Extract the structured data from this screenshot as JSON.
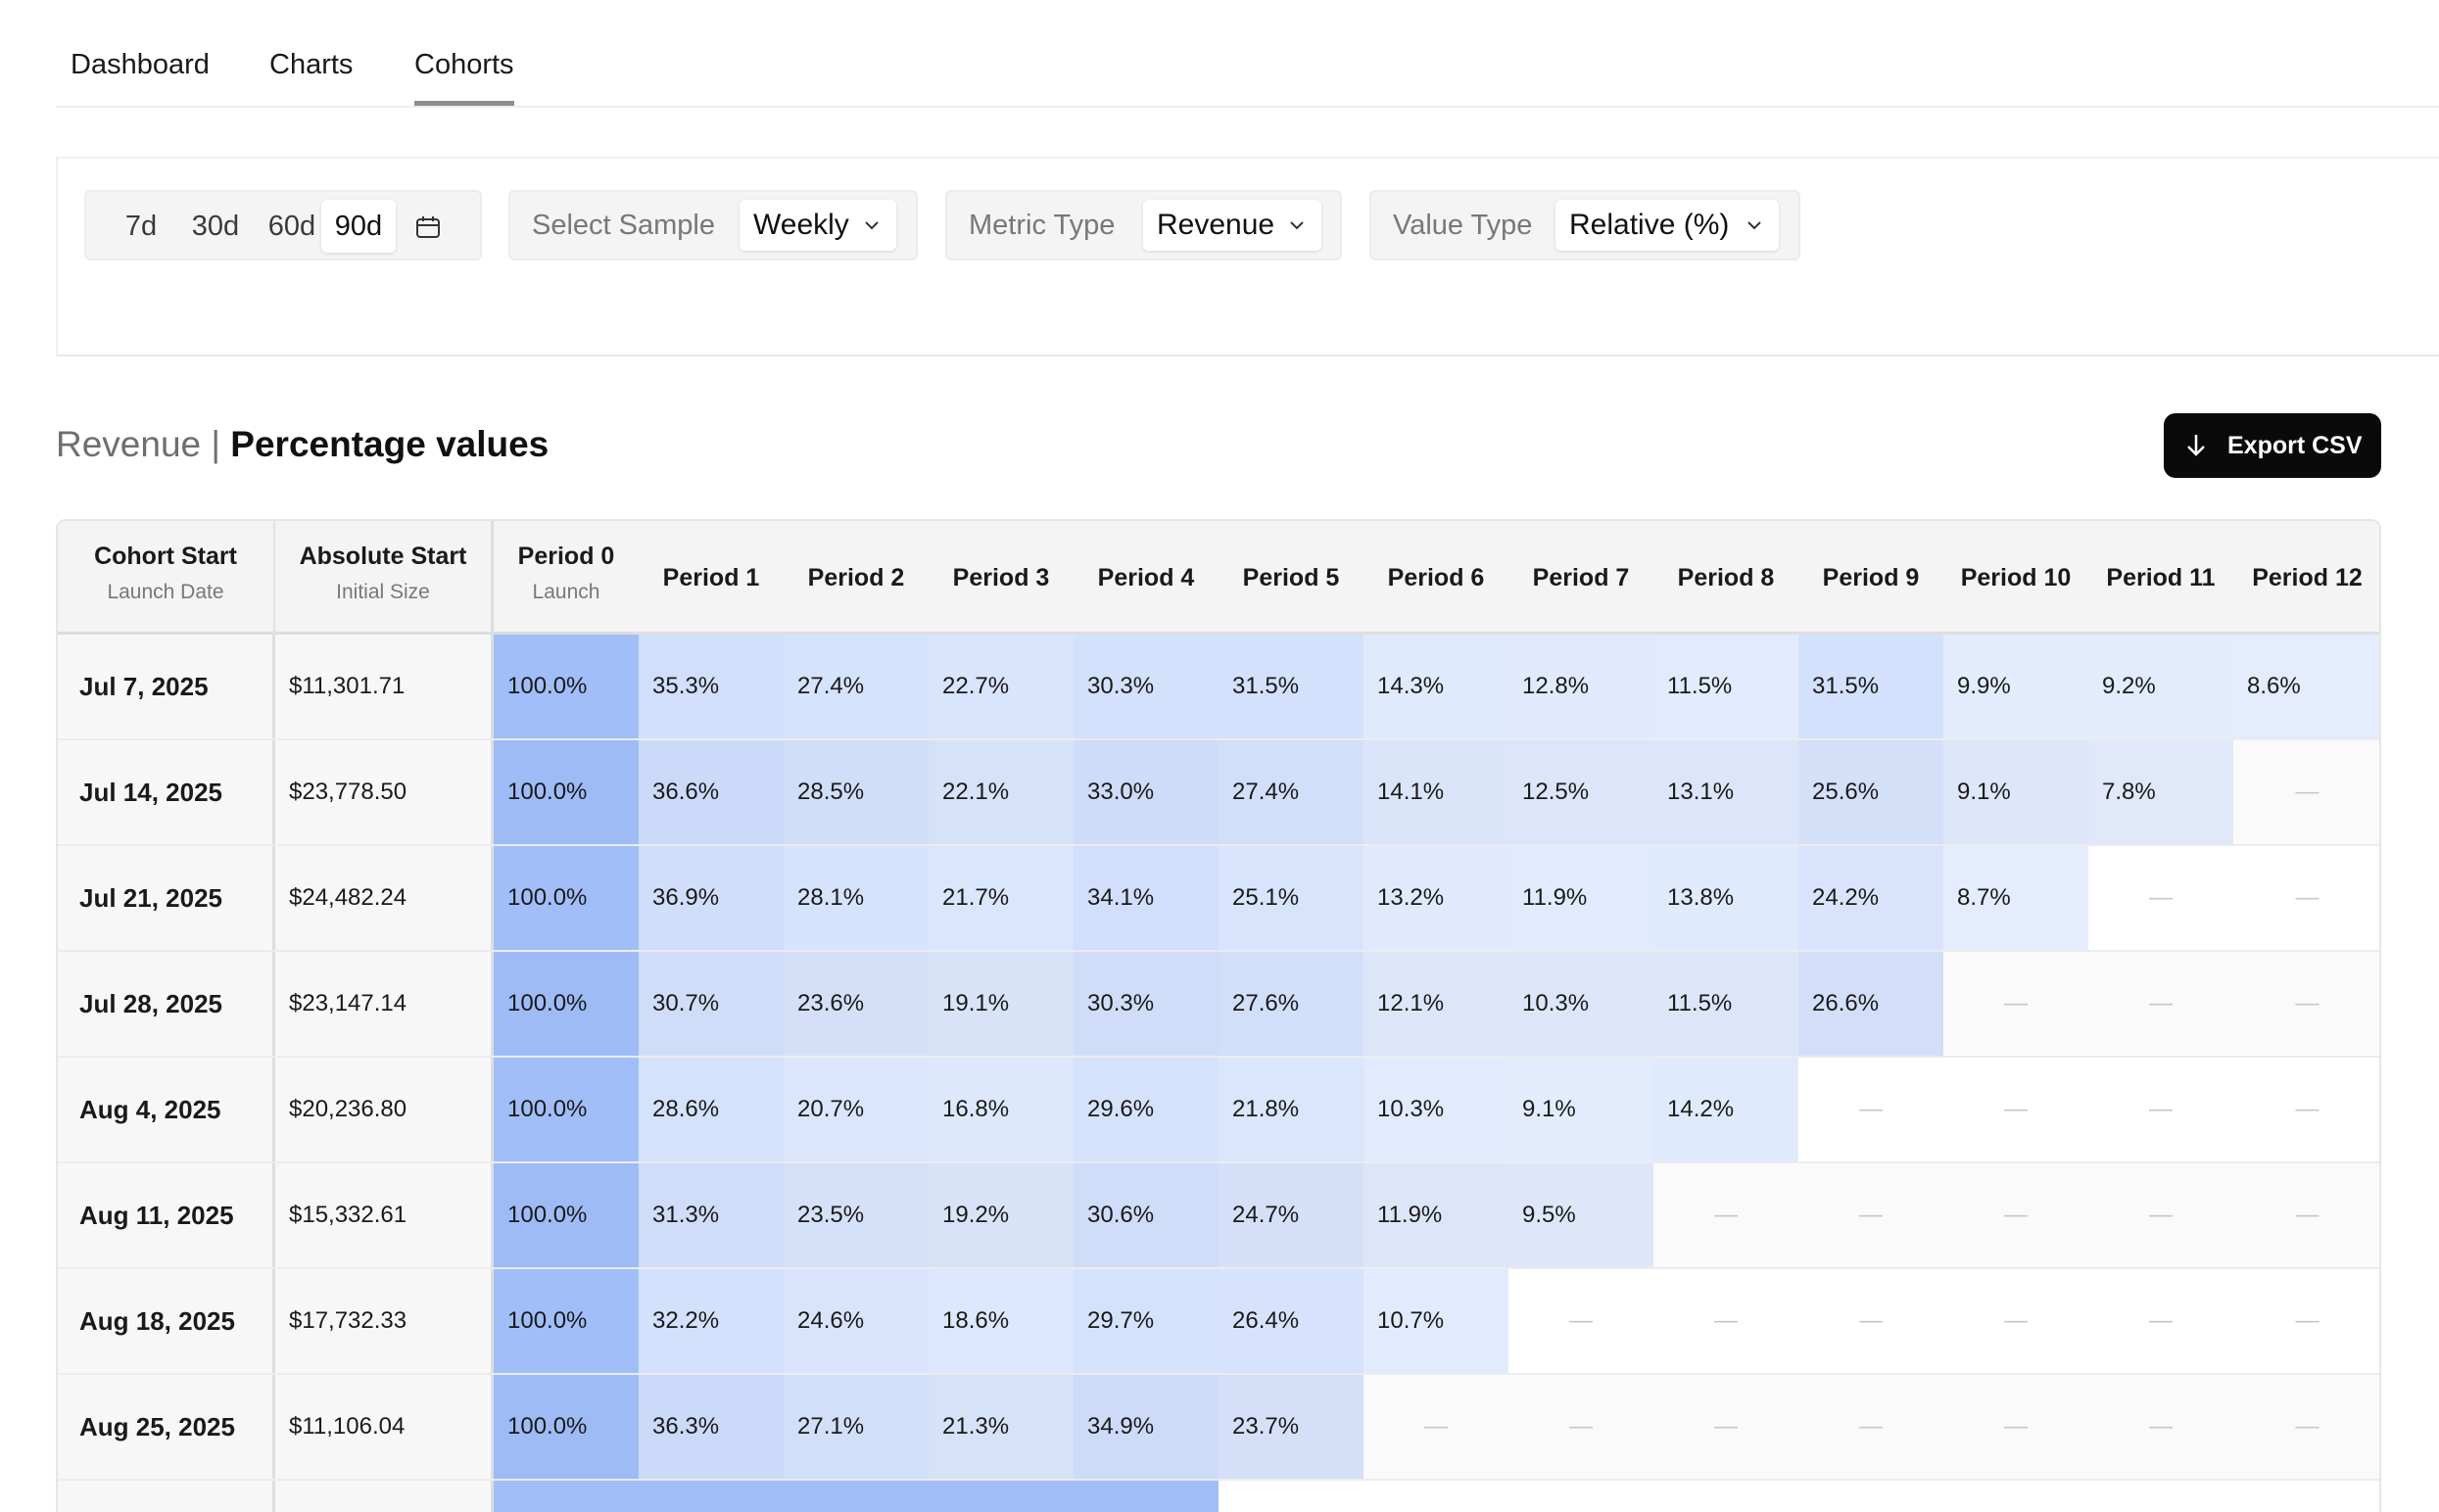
{
  "tabs": [
    {
      "label": "Dashboard",
      "active": false
    },
    {
      "label": "Charts",
      "active": false
    },
    {
      "label": "Cohorts",
      "active": true
    }
  ],
  "filters": {
    "range_options": [
      "7d",
      "30d",
      "60d",
      "90d"
    ],
    "range_selected": "90d",
    "calendar_icon": "calendar-icon",
    "sample": {
      "label": "Select Sample",
      "value": "Weekly"
    },
    "metric": {
      "label": "Metric Type",
      "value": "Revenue"
    },
    "value_type": {
      "label": "Value Type",
      "value": "Relative (%)"
    }
  },
  "section": {
    "title_metric": "Revenue",
    "separator": "|",
    "title_values": "Percentage values",
    "export_label": "Export CSV",
    "export_icon": "arrow-down-icon"
  },
  "table": {
    "columns": [
      {
        "title": "Cohort Start",
        "subtitle": "Launch Date"
      },
      {
        "title": "Absolute Start",
        "subtitle": "Initial Size"
      },
      {
        "title": "Period 0",
        "subtitle": "Launch"
      },
      {
        "title": "Period 1",
        "subtitle": ""
      },
      {
        "title": "Period 2",
        "subtitle": ""
      },
      {
        "title": "Period 3",
        "subtitle": ""
      },
      {
        "title": "Period 4",
        "subtitle": ""
      },
      {
        "title": "Period 5",
        "subtitle": ""
      },
      {
        "title": "Period 6",
        "subtitle": ""
      },
      {
        "title": "Period 7",
        "subtitle": ""
      },
      {
        "title": "Period 8",
        "subtitle": ""
      },
      {
        "title": "Period 9",
        "subtitle": ""
      },
      {
        "title": "Period 10",
        "subtitle": ""
      },
      {
        "title": "Period 11",
        "subtitle": ""
      },
      {
        "title": "Period 12",
        "subtitle": ""
      }
    ],
    "empty_symbol": "—",
    "heat_color": "#2f6ff0",
    "rows": [
      {
        "date": "Jul 7, 2025",
        "absolute": "$11,301.71",
        "values": [
          "100.0%",
          "35.3%",
          "27.4%",
          "22.7%",
          "30.3%",
          "31.5%",
          "14.3%",
          "12.8%",
          "11.5%",
          "31.5%",
          "9.9%",
          "9.2%",
          "8.6%"
        ]
      },
      {
        "date": "Jul 14, 2025",
        "absolute": "$23,778.50",
        "values": [
          "100.0%",
          "36.6%",
          "28.5%",
          "22.1%",
          "33.0%",
          "27.4%",
          "14.1%",
          "12.5%",
          "13.1%",
          "25.6%",
          "9.1%",
          "7.8%",
          null
        ]
      },
      {
        "date": "Jul 21, 2025",
        "absolute": "$24,482.24",
        "values": [
          "100.0%",
          "36.9%",
          "28.1%",
          "21.7%",
          "34.1%",
          "25.1%",
          "13.2%",
          "11.9%",
          "13.8%",
          "24.2%",
          "8.7%",
          null,
          null
        ]
      },
      {
        "date": "Jul 28, 2025",
        "absolute": "$23,147.14",
        "values": [
          "100.0%",
          "30.7%",
          "23.6%",
          "19.1%",
          "30.3%",
          "27.6%",
          "12.1%",
          "10.3%",
          "11.5%",
          "26.6%",
          null,
          null,
          null
        ]
      },
      {
        "date": "Aug 4, 2025",
        "absolute": "$20,236.80",
        "values": [
          "100.0%",
          "28.6%",
          "20.7%",
          "16.8%",
          "29.6%",
          "21.8%",
          "10.3%",
          "9.1%",
          "14.2%",
          null,
          null,
          null,
          null
        ]
      },
      {
        "date": "Aug 11, 2025",
        "absolute": "$15,332.61",
        "values": [
          "100.0%",
          "31.3%",
          "23.5%",
          "19.2%",
          "30.6%",
          "24.7%",
          "11.9%",
          "9.5%",
          null,
          null,
          null,
          null,
          null
        ]
      },
      {
        "date": "Aug 18, 2025",
        "absolute": "$17,732.33",
        "values": [
          "100.0%",
          "32.2%",
          "24.6%",
          "18.6%",
          "29.7%",
          "26.4%",
          "10.7%",
          null,
          null,
          null,
          null,
          null,
          null
        ]
      },
      {
        "date": "Aug 25, 2025",
        "absolute": "$11,106.04",
        "values": [
          "100.0%",
          "36.3%",
          "27.1%",
          "21.3%",
          "34.9%",
          "23.7%",
          null,
          null,
          null,
          null,
          null,
          null,
          null
        ]
      },
      {
        "date": "",
        "absolute": "",
        "values": [
          "",
          "",
          "",
          "",
          "",
          null,
          null,
          null,
          null,
          null,
          null,
          null,
          null
        ]
      }
    ]
  }
}
